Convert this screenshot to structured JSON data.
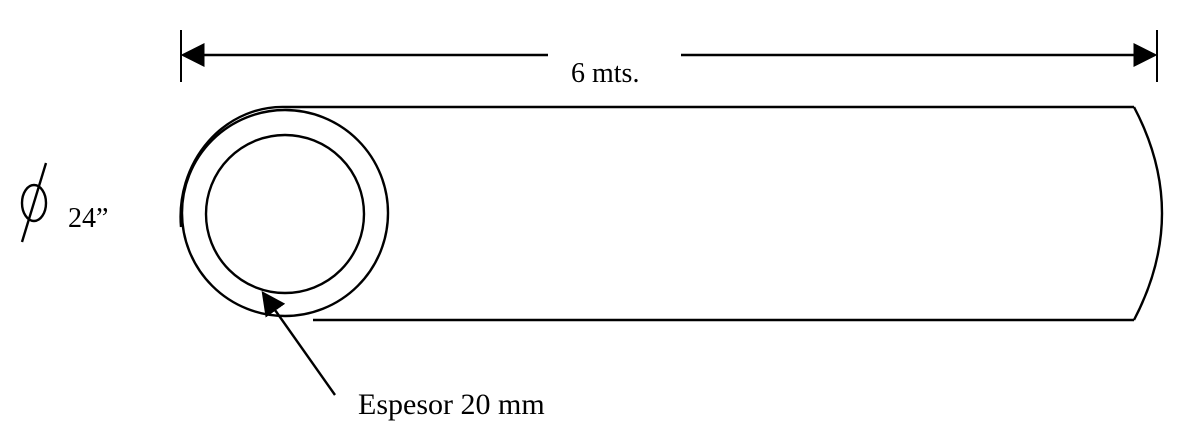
{
  "labels": {
    "length": "6 mts.",
    "diameter": "24”",
    "thickness": "Espesor 20 mm"
  },
  "symbols": {
    "diameter_symbol": "diameter-icon"
  },
  "colors": {
    "line": "#000000",
    "background": "#ffffff"
  }
}
